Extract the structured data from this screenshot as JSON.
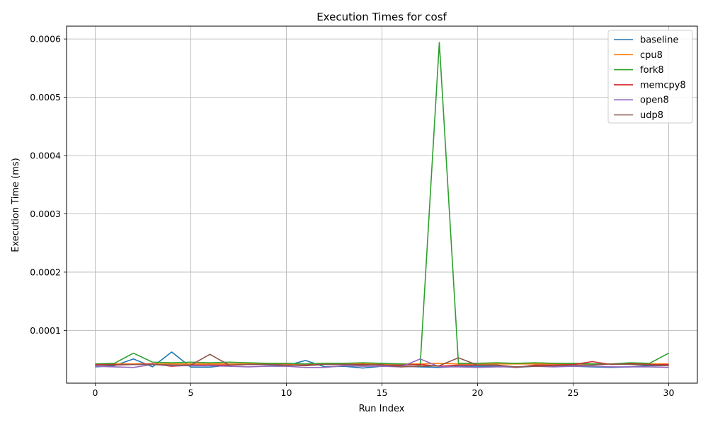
{
  "chart_data": {
    "type": "line",
    "title": "Execution Times for cosf",
    "xlabel": "Run Index",
    "ylabel": "Execution Time (ms)",
    "xlim": [
      -1.5,
      31.5
    ],
    "ylim": [
      9.5e-06,
      0.000622
    ],
    "xticks": [
      0,
      5,
      10,
      15,
      20,
      25,
      30
    ],
    "xtick_labels": [
      "0",
      "5",
      "10",
      "15",
      "20",
      "25",
      "30"
    ],
    "yticks": [
      0.0001,
      0.0002,
      0.0003,
      0.0004,
      0.0005,
      0.0006
    ],
    "ytick_labels": [
      "0.0001",
      "0.0002",
      "0.0003",
      "0.0004",
      "0.0005",
      "0.0006"
    ],
    "grid": true,
    "legend_position": "top-right",
    "x": [
      0,
      1,
      2,
      3,
      4,
      5,
      6,
      7,
      8,
      9,
      10,
      11,
      12,
      13,
      14,
      15,
      16,
      17,
      18,
      19,
      20,
      21,
      22,
      23,
      24,
      25,
      26,
      27,
      28,
      29,
      30
    ],
    "series": [
      {
        "name": "baseline",
        "color": "#1f77b4",
        "values": [
          3.75e-05,
          3.95e-05,
          5.1e-05,
          3.75e-05,
          6.3e-05,
          3.7e-05,
          3.7e-05,
          4.05e-05,
          4.25e-05,
          4.1e-05,
          3.95e-05,
          4.85e-05,
          3.75e-05,
          3.85e-05,
          3.55e-05,
          3.85e-05,
          3.85e-05,
          3.75e-05,
          3.65e-05,
          3.85e-05,
          3.85e-05,
          3.85e-05,
          3.65e-05,
          3.85e-05,
          3.85e-05,
          3.85e-05,
          3.75e-05,
          3.65e-05,
          3.75e-05,
          3.95e-05,
          3.95e-05
        ]
      },
      {
        "name": "cpu8",
        "color": "#ff7f0e",
        "values": [
          4.25e-05,
          4.25e-05,
          4.25e-05,
          4.25e-05,
          4.25e-05,
          4.25e-05,
          4.25e-05,
          4.25e-05,
          4.25e-05,
          4.25e-05,
          4.25e-05,
          4.25e-05,
          4.35e-05,
          4.25e-05,
          4.25e-05,
          4.25e-05,
          4.25e-05,
          4.25e-05,
          4.35e-05,
          4.25e-05,
          4.25e-05,
          4.25e-05,
          4.25e-05,
          4.25e-05,
          4.25e-05,
          4.25e-05,
          4.25e-05,
          4.25e-05,
          4.25e-05,
          4.25e-05,
          4.25e-05
        ]
      },
      {
        "name": "fork8",
        "color": "#2ca02c",
        "values": [
          4.25e-05,
          4.35e-05,
          6.1e-05,
          4.55e-05,
          4.45e-05,
          4.55e-05,
          4.45e-05,
          4.55e-05,
          4.45e-05,
          4.35e-05,
          4.35e-05,
          4.25e-05,
          4.35e-05,
          4.35e-05,
          4.45e-05,
          4.35e-05,
          4.25e-05,
          4.05e-05,
          0.000594,
          4.35e-05,
          4.35e-05,
          4.45e-05,
          4.35e-05,
          4.45e-05,
          4.35e-05,
          4.35e-05,
          4.25e-05,
          4.25e-05,
          4.45e-05,
          4.35e-05,
          6.1e-05
        ]
      },
      {
        "name": "memcpy8",
        "color": "#d62728",
        "values": [
          4.15e-05,
          4.15e-05,
          4.15e-05,
          4.25e-05,
          3.85e-05,
          4.05e-05,
          4.05e-05,
          4.05e-05,
          4.15e-05,
          4.15e-05,
          4.05e-05,
          4.05e-05,
          4.15e-05,
          4.15e-05,
          4.15e-05,
          4.05e-05,
          4.05e-05,
          4.15e-05,
          3.85e-05,
          4.05e-05,
          4.05e-05,
          4.05e-05,
          3.65e-05,
          4.05e-05,
          4.05e-05,
          4.15e-05,
          4.65e-05,
          4.15e-05,
          4.25e-05,
          4.15e-05,
          4.15e-05
        ]
      },
      {
        "name": "open8",
        "color": "#9467bd",
        "values": [
          3.85e-05,
          3.75e-05,
          3.65e-05,
          4.15e-05,
          3.95e-05,
          3.95e-05,
          3.95e-05,
          3.85e-05,
          3.75e-05,
          3.85e-05,
          3.85e-05,
          3.65e-05,
          3.65e-05,
          3.95e-05,
          3.85e-05,
          3.85e-05,
          3.75e-05,
          5.1e-05,
          3.75e-05,
          3.75e-05,
          3.65e-05,
          3.75e-05,
          3.75e-05,
          3.85e-05,
          3.75e-05,
          3.85e-05,
          3.85e-05,
          3.75e-05,
          3.75e-05,
          3.75e-05,
          3.65e-05
        ]
      },
      {
        "name": "udp8",
        "color": "#8c564b",
        "values": [
          4.05e-05,
          4.05e-05,
          4.15e-05,
          4.15e-05,
          4.05e-05,
          4.05e-05,
          5.9e-05,
          4.05e-05,
          4.15e-05,
          4.15e-05,
          4.05e-05,
          3.95e-05,
          4.15e-05,
          4.15e-05,
          4.05e-05,
          4.15e-05,
          3.75e-05,
          3.85e-05,
          3.95e-05,
          5.3e-05,
          4.05e-05,
          4.05e-05,
          3.75e-05,
          3.85e-05,
          3.95e-05,
          4.05e-05,
          4.05e-05,
          4.25e-05,
          4.15e-05,
          4.05e-05,
          3.95e-05
        ]
      }
    ]
  }
}
